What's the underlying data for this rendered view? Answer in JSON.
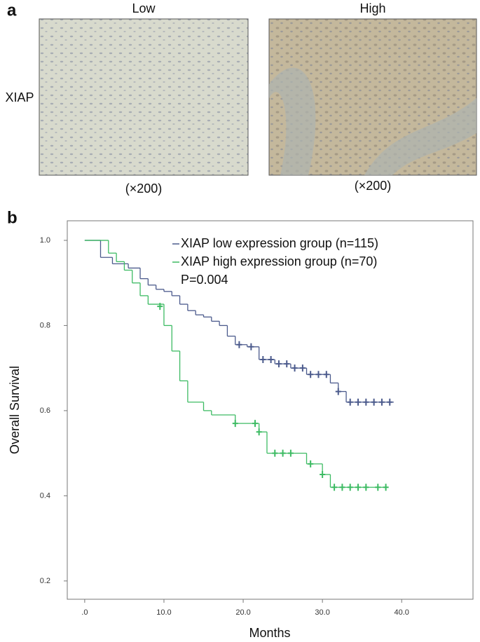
{
  "panel_a": {
    "label": "a",
    "columns": [
      "Low",
      "High"
    ],
    "row_label": "XIAP",
    "magnifications": [
      "(×200)",
      "(×200)"
    ]
  },
  "chart_data": {
    "type": "survival",
    "panel_label": "b",
    "x_label": "Months",
    "y_label": "Overall Survival",
    "annotation": "P=0.004",
    "xlim": [
      -2.2,
      49
    ],
    "ylim": [
      0.157,
      1.046
    ],
    "xticks": [
      {
        "value": 0,
        "label": ".0"
      },
      {
        "value": 10,
        "label": "10.0"
      },
      {
        "value": 20,
        "label": "20.0"
      },
      {
        "value": 30,
        "label": "30.0"
      },
      {
        "value": 40,
        "label": "40.0"
      }
    ],
    "yticks": [
      0.2,
      0.4,
      0.6,
      0.8,
      {
        "value": 1,
        "label": "1.0"
      }
    ],
    "series": [
      {
        "name": "XIAP low expression group (n=115)",
        "color": "#4b5a8c",
        "x": [
          0,
          2,
          3.5,
          5.5,
          7,
          8,
          9,
          10,
          11,
          12,
          13,
          14,
          15,
          16,
          17,
          18,
          19,
          20.5,
          22,
          24,
          26,
          28,
          31,
          32,
          33,
          39
        ],
        "values": [
          1.0,
          0.96,
          0.945,
          0.935,
          0.91,
          0.895,
          0.885,
          0.88,
          0.87,
          0.85,
          0.835,
          0.825,
          0.82,
          0.81,
          0.8,
          0.775,
          0.755,
          0.75,
          0.72,
          0.71,
          0.7,
          0.685,
          0.665,
          0.645,
          0.62,
          0.62
        ],
        "censored_x": [
          19.5,
          21,
          22.5,
          23.5,
          24.5,
          25.5,
          26.5,
          27.5,
          28.5,
          29.5,
          30.5,
          32,
          33.5,
          34.5,
          35.5,
          36.5,
          37.5,
          38.5
        ],
        "censored_values": [
          0.755,
          0.75,
          0.72,
          0.72,
          0.71,
          0.71,
          0.7,
          0.7,
          0.685,
          0.685,
          0.685,
          0.645,
          0.62,
          0.62,
          0.62,
          0.62,
          0.62,
          0.62
        ]
      },
      {
        "name": "XIAP high expression group (n=70)",
        "color": "#3dbb63",
        "x": [
          0,
          3,
          4,
          5,
          6,
          7,
          8,
          10,
          11,
          12,
          13,
          15,
          16,
          19,
          22,
          23,
          28,
          30,
          31,
          38
        ],
        "values": [
          1.0,
          0.97,
          0.95,
          0.93,
          0.9,
          0.87,
          0.85,
          0.8,
          0.74,
          0.67,
          0.62,
          0.6,
          0.59,
          0.57,
          0.55,
          0.5,
          0.475,
          0.45,
          0.42,
          0.42
        ],
        "censored_x": [
          9.5,
          19,
          21.5,
          22,
          24,
          25,
          26,
          28.5,
          30,
          31.5,
          32.5,
          33.5,
          34.5,
          35.5,
          37,
          38
        ],
        "censored_values": [
          0.845,
          0.57,
          0.57,
          0.55,
          0.5,
          0.5,
          0.5,
          0.475,
          0.45,
          0.42,
          0.42,
          0.42,
          0.42,
          0.42,
          0.42,
          0.42
        ]
      }
    ]
  }
}
